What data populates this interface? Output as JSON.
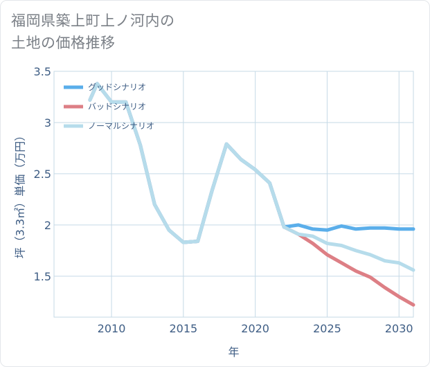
{
  "title_lines": [
    "福岡県築上町上ノ河内の",
    "土地の価格推移"
  ],
  "colors": {
    "good": "#5aaeea",
    "bad": "#dd7f85",
    "normal": "#b6dceb",
    "grid": "#c5d9e6",
    "axis_text": "#3e5d84",
    "title_text": "#7a7f86"
  },
  "chart_data": {
    "type": "line",
    "title": "福岡県築上町上ノ河内の土地の価格推移",
    "xlabel": "年",
    "ylabel": "坪（3.3㎡）単価（万円）",
    "xlim": [
      2006,
      2031
    ],
    "ylim": [
      1.1,
      3.5
    ],
    "xticks": [
      2010,
      2015,
      2020,
      2025,
      2030
    ],
    "yticks": [
      1.5,
      2,
      2.5,
      3,
      3.5
    ],
    "xtick_labels": [
      "2010",
      "2015",
      "2020",
      "2025",
      "2030"
    ],
    "ytick_labels": [
      "1.5",
      "2",
      "2.5",
      "3",
      "3.5"
    ],
    "legend_position": "top-left",
    "series": [
      {
        "name": "グッドシナリオ",
        "key": "good",
        "x": [
          2008.5,
          2009,
          2010,
          2011,
          2012,
          2013,
          2014,
          2015,
          2016,
          2017,
          2018,
          2019,
          2020,
          2021,
          2022,
          2023,
          2024,
          2025,
          2026,
          2027,
          2028,
          2029,
          2030,
          2031
        ],
        "values": [
          3.22,
          3.38,
          3.2,
          3.2,
          2.78,
          2.2,
          1.95,
          1.83,
          1.84,
          2.34,
          2.79,
          2.64,
          2.54,
          2.41,
          1.98,
          2.0,
          1.96,
          1.95,
          1.99,
          1.96,
          1.97,
          1.97,
          1.96,
          1.96
        ]
      },
      {
        "name": "バッドシナリオ",
        "key": "bad",
        "x": [
          2008.5,
          2009,
          2010,
          2011,
          2012,
          2013,
          2014,
          2015,
          2016,
          2017,
          2018,
          2019,
          2020,
          2021,
          2022,
          2023,
          2024,
          2025,
          2026,
          2027,
          2028,
          2029,
          2030,
          2031
        ],
        "values": [
          3.22,
          3.38,
          3.2,
          3.2,
          2.78,
          2.2,
          1.95,
          1.83,
          1.84,
          2.34,
          2.79,
          2.64,
          2.54,
          2.41,
          1.98,
          1.91,
          1.82,
          1.71,
          1.63,
          1.55,
          1.49,
          1.39,
          1.3,
          1.22
        ]
      },
      {
        "name": "ノーマルシナリオ",
        "key": "normal",
        "x": [
          2008.5,
          2009,
          2010,
          2011,
          2012,
          2013,
          2014,
          2015,
          2016,
          2017,
          2018,
          2019,
          2020,
          2021,
          2022,
          2023,
          2024,
          2025,
          2026,
          2027,
          2028,
          2029,
          2030,
          2031
        ],
        "values": [
          3.22,
          3.38,
          3.2,
          3.2,
          2.78,
          2.2,
          1.95,
          1.83,
          1.84,
          2.34,
          2.79,
          2.64,
          2.54,
          2.41,
          1.98,
          1.91,
          1.89,
          1.82,
          1.8,
          1.75,
          1.71,
          1.65,
          1.63,
          1.56
        ]
      }
    ]
  }
}
